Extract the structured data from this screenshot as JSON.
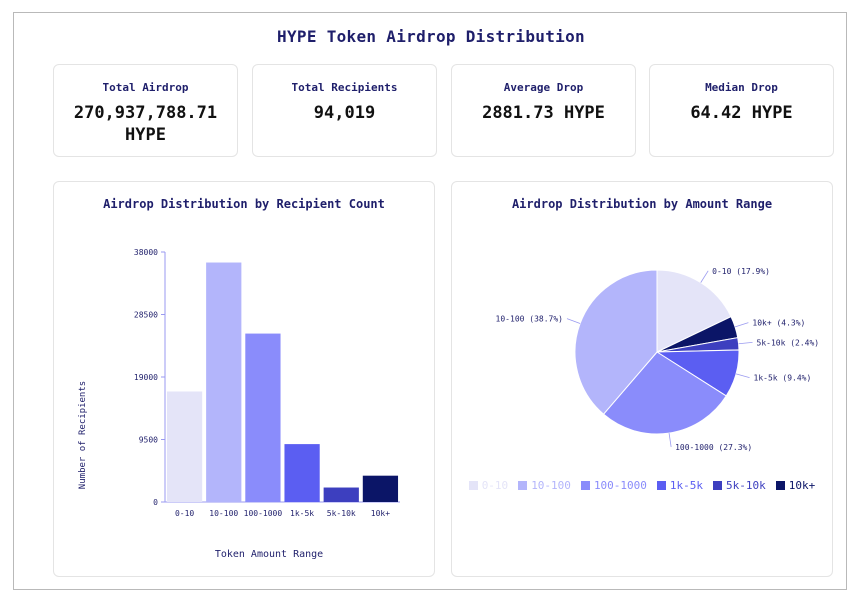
{
  "title": "HYPE Token Airdrop Distribution",
  "stats": [
    {
      "label": "Total Airdrop",
      "value": "270,937,788.71 HYPE"
    },
    {
      "label": "Total Recipients",
      "value": "94,019"
    },
    {
      "label": "Average Drop",
      "value": "2881.73 HYPE"
    },
    {
      "label": "Median Drop",
      "value": "64.42 HYPE"
    }
  ],
  "colors": [
    "#e4e4f8",
    "#b3b5fb",
    "#8a8cfb",
    "#5b5ef2",
    "#3d3fbf",
    "#0b1567"
  ],
  "chart_data": [
    {
      "type": "bar",
      "title": "Airdrop Distribution by Recipient Count",
      "xlabel": "Token Amount Range",
      "ylabel": "Number of Recipients",
      "categories": [
        "0-10",
        "10-100",
        "100-1000",
        "1k-5k",
        "5k-10k",
        "10k+"
      ],
      "values": [
        16800,
        36400,
        25600,
        8800,
        2200,
        4000
      ],
      "ylim": [
        0,
        38000
      ],
      "yticks": [
        "0",
        "9500",
        "19000",
        "28500",
        "38000"
      ],
      "grid": false
    },
    {
      "type": "pie",
      "title": "Airdrop Distribution by Amount Range",
      "categories": [
        "0-10",
        "10-100",
        "100-1000",
        "1k-5k",
        "5k-10k",
        "10k+"
      ],
      "values": [
        17.9,
        38.7,
        27.3,
        9.4,
        2.4,
        4.3
      ],
      "slice_labels": [
        "0-10 (17.9%)",
        "10-100 (38.7%)",
        "100-1000 (27.3%)",
        "1k-5k (9.4%)",
        "5k-10k (2.4%)",
        "10k+ (4.3%)"
      ],
      "legend": "bottom"
    }
  ]
}
